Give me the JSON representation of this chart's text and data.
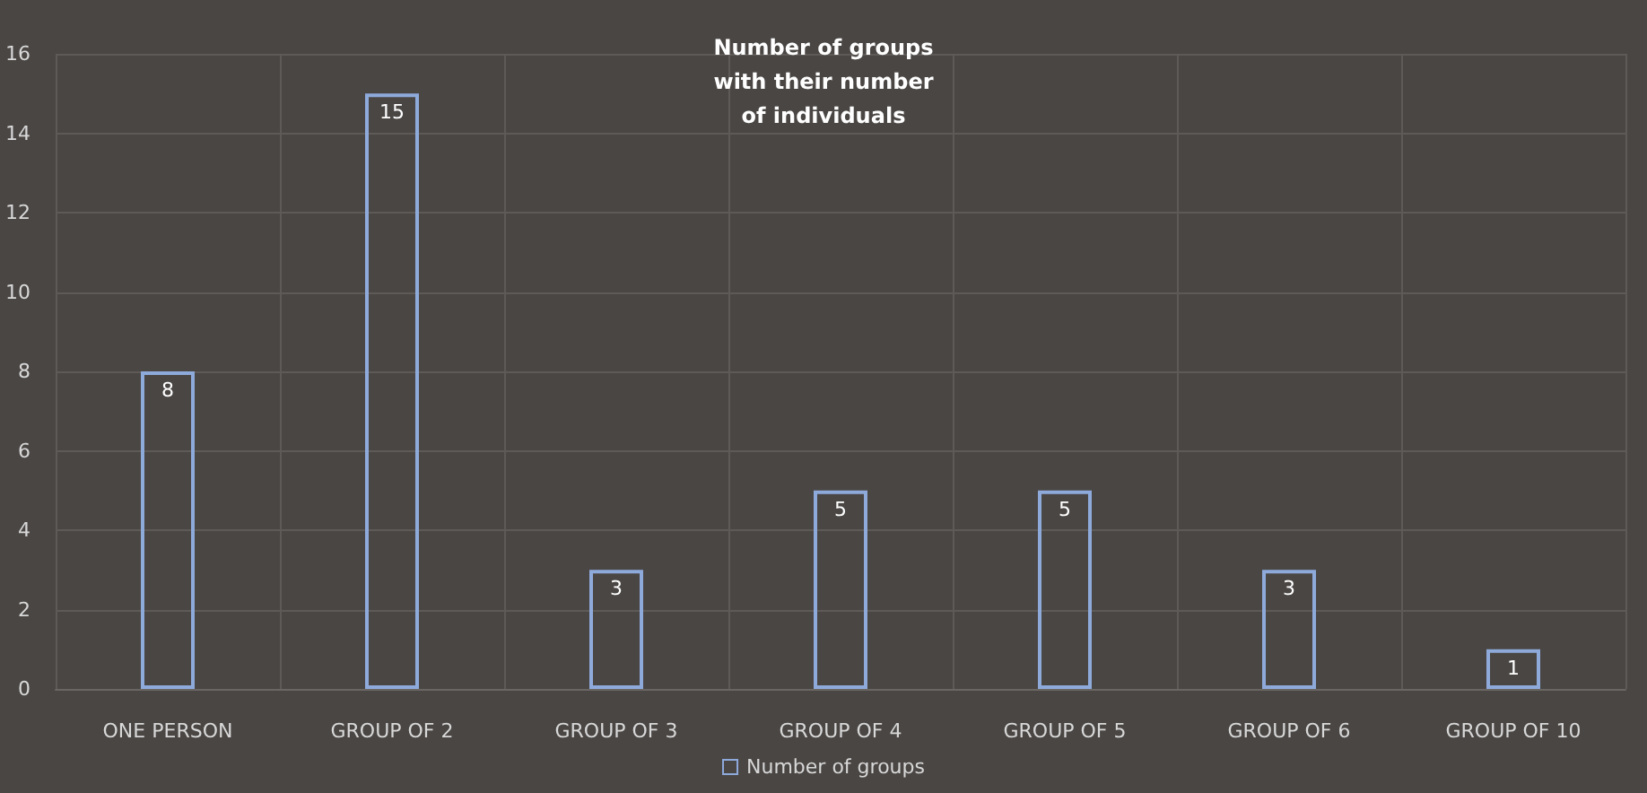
{
  "chart_data": {
    "type": "bar",
    "title": "Number of groups\nwith their number\nof individuals",
    "categories": [
      "ONE PERSON",
      "GROUP OF 2",
      "GROUP OF 3",
      "GROUP OF 4",
      "GROUP OF 5",
      "GROUP OF 6",
      "GROUP OF 10"
    ],
    "series": [
      {
        "name": "Number of groups",
        "color": "#8eaadb",
        "values": [
          8,
          15,
          3,
          5,
          5,
          3,
          1
        ]
      }
    ],
    "ylim": [
      0,
      16
    ],
    "yticks": [
      0,
      2,
      4,
      6,
      8,
      10,
      12,
      14,
      16
    ],
    "grid": true,
    "legend": "bottom",
    "data_labels": true
  }
}
